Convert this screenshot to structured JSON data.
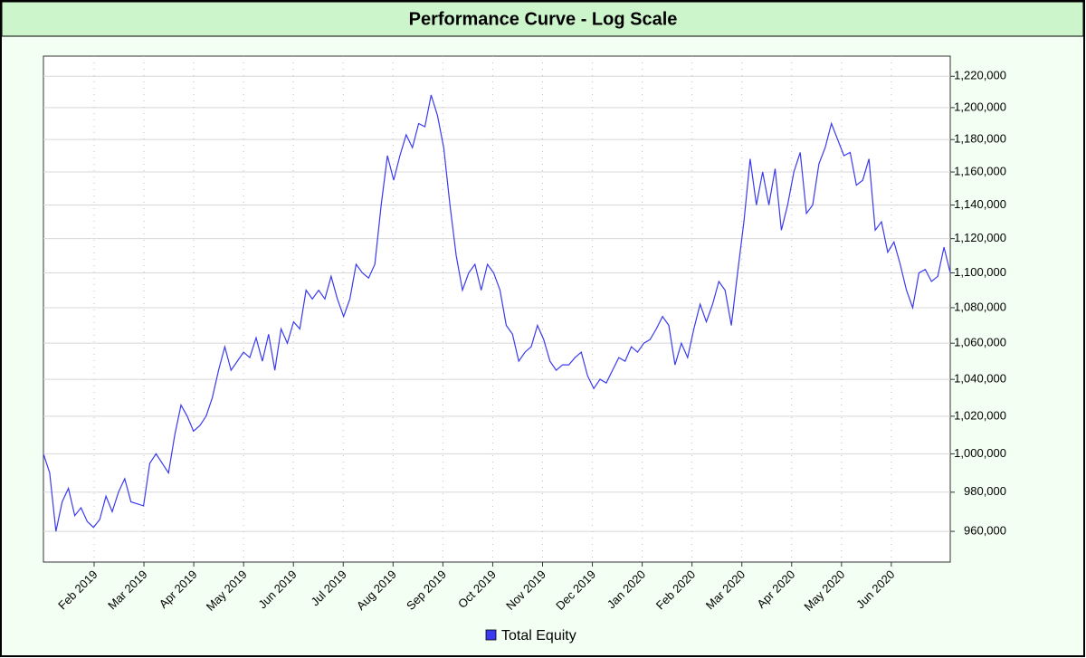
{
  "chart_data": {
    "type": "line",
    "title": "Performance Curve - Log Scale",
    "log_scale": true,
    "grid": true,
    "legend": "bottom",
    "xticks": [
      "Feb 2019",
      "Mar 2019",
      "Apr 2019",
      "May 2019",
      "Jun 2019",
      "Jul 2019",
      "Aug 2019",
      "Sep 2019",
      "Oct 2019",
      "Nov 2019",
      "Dec 2019",
      "Jan 2020",
      "Feb 2020",
      "Mar 2020",
      "Apr 2020",
      "May 2020",
      "Jun 2020"
    ],
    "ylim": [
      944600,
      1233000
    ],
    "yticks": [
      {
        "value": 960000,
        "label": "960,000"
      },
      {
        "value": 980000,
        "label": "980,000"
      },
      {
        "value": 1000000,
        "label": "1,000,000"
      },
      {
        "value": 1020000,
        "label": "1,020,000"
      },
      {
        "value": 1040000,
        "label": "1,040,000"
      },
      {
        "value": 1060000,
        "label": "1,060,000"
      },
      {
        "value": 1080000,
        "label": "1,080,000"
      },
      {
        "value": 1100000,
        "label": "1,100,000"
      },
      {
        "value": 1120000,
        "label": "1,120,000"
      },
      {
        "value": 1140000,
        "label": "1,140,000"
      },
      {
        "value": 1160000,
        "label": "1,160,000"
      },
      {
        "value": 1180000,
        "label": "1,180,000"
      },
      {
        "value": 1200000,
        "label": "1,200,000"
      },
      {
        "value": 1220000,
        "label": "1,220,000"
      }
    ],
    "series": [
      {
        "name": "Total Equity",
        "color": "#3a3af0",
        "values": [
          1000000,
          990000,
          960000,
          975000,
          982000,
          968000,
          972000,
          965000,
          962000,
          966000,
          978000,
          970000,
          980000,
          987000,
          975000,
          974000,
          973000,
          995000,
          1000000,
          995000,
          990000,
          1010000,
          1026000,
          1020000,
          1012000,
          1015000,
          1020000,
          1030000,
          1045000,
          1058000,
          1045000,
          1050000,
          1055000,
          1052000,
          1063000,
          1050000,
          1065000,
          1045000,
          1068000,
          1060000,
          1072000,
          1068000,
          1090000,
          1085000,
          1090000,
          1085000,
          1098000,
          1085000,
          1075000,
          1085000,
          1105000,
          1100000,
          1097000,
          1105000,
          1140000,
          1170000,
          1155000,
          1170000,
          1183000,
          1175000,
          1190000,
          1188000,
          1208000,
          1195000,
          1175000,
          1140000,
          1110000,
          1090000,
          1100000,
          1105000,
          1090000,
          1105000,
          1100000,
          1090000,
          1070000,
          1065000,
          1050000,
          1055000,
          1058000,
          1070000,
          1062000,
          1050000,
          1045000,
          1048000,
          1048000,
          1052000,
          1055000,
          1042000,
          1035000,
          1040000,
          1038000,
          1045000,
          1052000,
          1050000,
          1058000,
          1055000,
          1060000,
          1062000,
          1068000,
          1075000,
          1070000,
          1048000,
          1060000,
          1052000,
          1068000,
          1082000,
          1072000,
          1082000,
          1095000,
          1090000,
          1070000,
          1100000,
          1130000,
          1168000,
          1140000,
          1160000,
          1140000,
          1162000,
          1125000,
          1140000,
          1160000,
          1172000,
          1135000,
          1140000,
          1165000,
          1175000,
          1190000,
          1180000,
          1170000,
          1172000,
          1152000,
          1155000,
          1168000,
          1125000,
          1130000,
          1112000,
          1118000,
          1105000,
          1090000,
          1080000,
          1100000,
          1102000,
          1095000,
          1098000,
          1115000,
          1100000
        ]
      }
    ]
  }
}
